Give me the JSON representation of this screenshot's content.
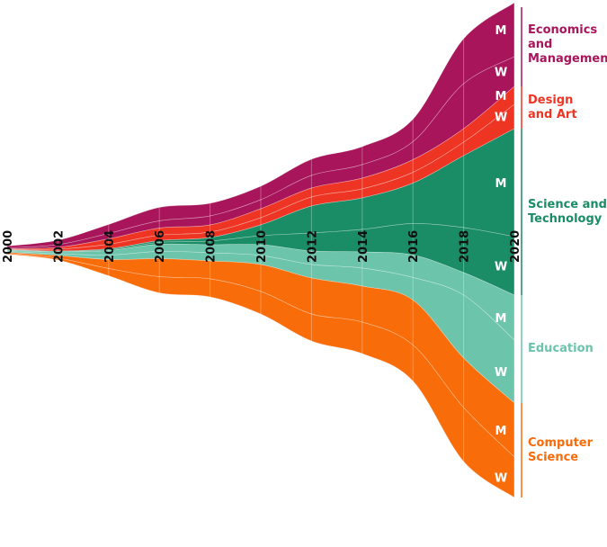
{
  "chart_data": {
    "type": "area",
    "subtype": "streamgraph",
    "x": [
      2000,
      2002,
      2004,
      2006,
      2008,
      2010,
      2012,
      2014,
      2016,
      2018,
      2020
    ],
    "x_tick_labels": [
      "2000",
      "2002",
      "2004",
      "2006",
      "2008",
      "2010",
      "2012",
      "2014",
      "2016",
      "2018",
      "2020"
    ],
    "grid": "vertical lines at each tick",
    "groups": [
      {
        "name": "Economics and Management",
        "lines": [
          "Economics",
          "and",
          "Management"
        ],
        "color": "#a8155a",
        "series": [
          {
            "name": "M",
            "values": [
              2,
              5,
              10,
              15,
              14,
              15,
              18,
              20,
              25,
              50,
              60
            ]
          },
          {
            "name": "W",
            "values": [
              1,
              3,
              6,
              8,
              10,
              10,
              14,
              15,
              20,
              50,
              33
            ]
          }
        ]
      },
      {
        "name": "Design and Art",
        "lines": [
          "Design",
          "and Art"
        ],
        "color": "#ee3524",
        "series": [
          {
            "name": "M",
            "values": [
              0.5,
              2,
              6,
              8,
              8,
              10,
              10,
              12,
              14,
              15,
              20
            ]
          },
          {
            "name": "W",
            "values": [
              0.5,
              2,
              5,
              6,
              6,
              8,
              10,
              10,
              12,
              15,
              27
            ]
          }
        ]
      },
      {
        "name": "Science and Technology",
        "lines": [
          "Science and",
          "Technology"
        ],
        "color": "#1a8c66",
        "series": [
          {
            "name": "M",
            "values": [
              0.5,
              0.5,
              1,
              2,
              4,
              12,
              30,
              35,
              45,
              80,
              120
            ]
          },
          {
            "name": "W",
            "values": [
              0.5,
              0.5,
              1,
              2,
              4,
              10,
              20,
              25,
              35,
              50,
              65
            ]
          }
        ]
      },
      {
        "name": "Education",
        "lines": [
          "Education"
        ],
        "color": "#6cc4ab",
        "series": [
          {
            "name": "M",
            "values": [
              1,
              2,
              5,
              8,
              9,
              12,
              15,
              18,
              25,
              25,
              50
            ]
          },
          {
            "name": "W",
            "values": [
              1,
              2,
              5,
              8,
              9,
              10,
              15,
              20,
              25,
              70,
              70
            ]
          }
        ]
      },
      {
        "name": "Computer Science",
        "lines": [
          "Computer",
          "Science"
        ],
        "color": "#f96c0a",
        "series": [
          {
            "name": "M",
            "values": [
              1,
              3,
              10,
              20,
              20,
              30,
              40,
              40,
              50,
              55,
              60
            ]
          },
          {
            "name": "W",
            "values": [
              1,
              2,
              8,
              18,
              20,
              25,
              30,
              35,
              40,
              60,
              45
            ]
          }
        ]
      }
    ]
  }
}
